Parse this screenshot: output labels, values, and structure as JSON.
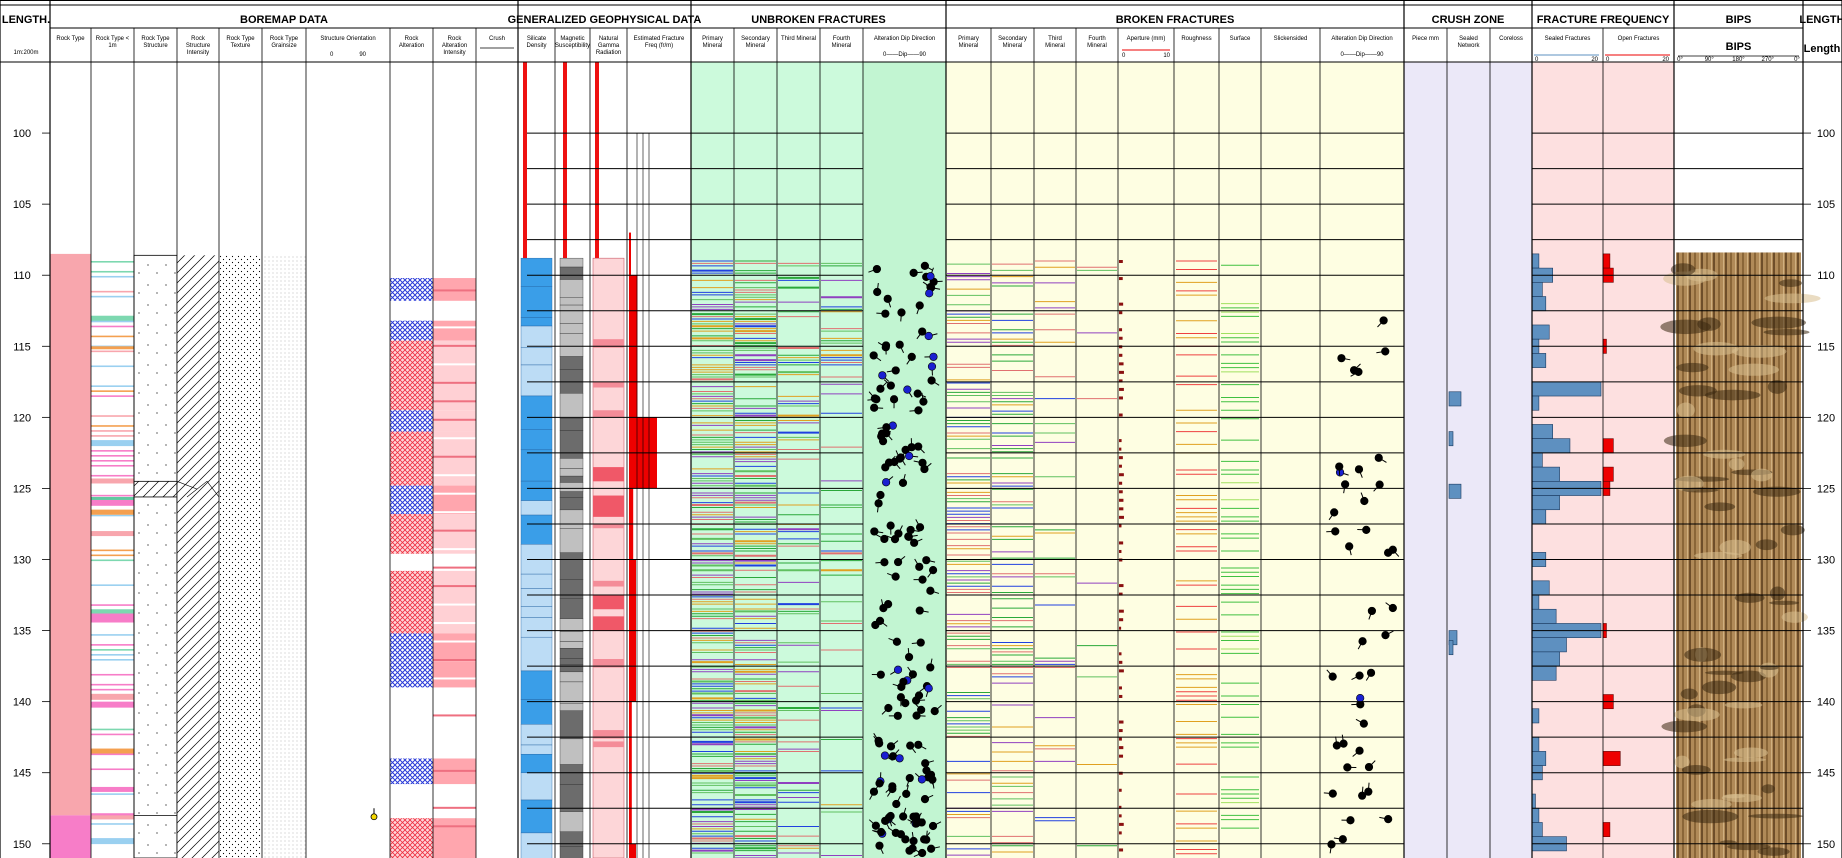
{
  "headers": {
    "length_left": "LENGTH.",
    "length_right": "LENGTH",
    "scale": "1m:200m",
    "length_label": "Length",
    "groups": [
      {
        "id": "boremap",
        "title": "BOREMAP DATA"
      },
      {
        "id": "geo",
        "title": "GENERALIZED GEOPHYSICAL DATA"
      },
      {
        "id": "unbroken",
        "title": "UNBROKEN FRACTURES"
      },
      {
        "id": "broken",
        "title": "BROKEN FRACTURES"
      },
      {
        "id": "crush",
        "title": "CRUSH ZONE"
      },
      {
        "id": "ff",
        "title": "FRACTURE FREQUENCY"
      },
      {
        "id": "bips",
        "title": "BIPS"
      }
    ],
    "columns": [
      {
        "id": "rock-type",
        "label": "Rock Type"
      },
      {
        "id": "rock-type-1m",
        "label": "Rock Type < 1m"
      },
      {
        "id": "rock-type-structure",
        "label": "Rock Type Structure"
      },
      {
        "id": "rock-structure-intensity",
        "label": "Rock Structure Intensity"
      },
      {
        "id": "rock-type-texture",
        "label": "Rock Type Texture"
      },
      {
        "id": "rock-type-grainsize",
        "label": "Rock Type Grainsize"
      },
      {
        "id": "structure-orientation",
        "label": "Structure Orientation"
      },
      {
        "id": "rock-alteration",
        "label": "Rock Alteration"
      },
      {
        "id": "rock-alteration-intensity",
        "label": "Rock Alteration Intensity"
      },
      {
        "id": "crush",
        "label": "Crush"
      },
      {
        "id": "silicate-density",
        "label": "Silicate Density"
      },
      {
        "id": "magnetic-susceptibility",
        "label": "Magnetic Susceptibility"
      },
      {
        "id": "natural-gamma",
        "label": "Natural Gamma Radiation"
      },
      {
        "id": "est-fracture-freq",
        "label": "Estimated Fracture Freq (fr/m)"
      },
      {
        "id": "ub-primary",
        "label": "Primary Mineral"
      },
      {
        "id": "ub-secondary",
        "label": "Secondary Mineral"
      },
      {
        "id": "ub-third",
        "label": "Third Mineral"
      },
      {
        "id": "ub-fourth",
        "label": "Fourth Mineral"
      },
      {
        "id": "ub-alteration",
        "label": "Alteration Dip Direction"
      },
      {
        "id": "br-primary",
        "label": "Primary Mineral"
      },
      {
        "id": "br-secondary",
        "label": "Secondary Mineral"
      },
      {
        "id": "br-third",
        "label": "Third Mineral"
      },
      {
        "id": "br-fourth",
        "label": "Fourth Mineral"
      },
      {
        "id": "br-aperture",
        "label": "Aperture (mm)"
      },
      {
        "id": "br-roughness",
        "label": "Roughness"
      },
      {
        "id": "br-surface",
        "label": "Surface"
      },
      {
        "id": "br-slickensided",
        "label": "Slickensided"
      },
      {
        "id": "br-alteration",
        "label": "Alteration Dip Direction"
      },
      {
        "id": "piece",
        "label": "Piece mm"
      },
      {
        "id": "sealed-network",
        "label": "Sealed Network"
      },
      {
        "id": "coreloss",
        "label": "Coreloss"
      },
      {
        "id": "sealed-fractures",
        "label": "Sealed Fractures"
      },
      {
        "id": "open-fractures",
        "label": "Open Fractures"
      },
      {
        "id": "bips-image",
        "label": "BIPS"
      }
    ],
    "dip_scale": "0——Dip——90",
    "orientation_scale": [
      "0",
      "90"
    ],
    "aperture_scale": [
      "0",
      "10"
    ],
    "ff_scale": [
      "0",
      "20"
    ],
    "bips_scale": [
      "0°",
      "90°",
      "180°",
      "270°",
      "0°"
    ]
  },
  "depth": {
    "start": 95,
    "end": 151,
    "labels": [
      100,
      105,
      110,
      115,
      120,
      125,
      130,
      135,
      140,
      145,
      150
    ],
    "unit": "m"
  },
  "colors": {
    "rock_type_main": "#f8a6ad",
    "rock_type_bottom": "#f77dc8",
    "unbroken_bg": "#ccfadc",
    "unbroken_dip_bg": "#c2f5d2",
    "broken_bg": "#fefee2",
    "crush_bg": "#ebe8f8",
    "ff_bg": "#fde0e0",
    "ff_bar": "#5e90c0",
    "open_bar": "#ee0000",
    "silicate": "#3a9ee8",
    "silicate_light": "#bcdcf5",
    "magnetic_dark": "#6c6c6c",
    "magnetic_light": "#c0c0c0",
    "gamma_light": "#fdd6d8",
    "gamma_dark": "#f48c98",
    "alteration_blue": "#2a3ad8",
    "alteration_red": "#ee3040"
  },
  "chart_data": {
    "type": "table",
    "depth_axis": {
      "min": 95,
      "max": 151,
      "unit": "m"
    },
    "rock_type": [
      {
        "from": 108.5,
        "to": 148.0,
        "class": "main"
      },
      {
        "from": 148.0,
        "to": 151.0,
        "class": "bottom"
      }
    ],
    "rock_alteration": [
      {
        "from": 110.2,
        "to": 111.8,
        "c": "blue"
      },
      {
        "from": 113.2,
        "to": 114.6,
        "c": "blue"
      },
      {
        "from": 114.6,
        "to": 119.5,
        "c": "red"
      },
      {
        "from": 119.5,
        "to": 121.0,
        "c": "blue"
      },
      {
        "from": 121.0,
        "to": 124.8,
        "c": "red"
      },
      {
        "from": 124.8,
        "to": 126.8,
        "c": "blue"
      },
      {
        "from": 126.8,
        "to": 129.6,
        "c": "red"
      },
      {
        "from": 129.6,
        "to": 130.8,
        "c": "white"
      },
      {
        "from": 130.8,
        "to": 135.2,
        "c": "red"
      },
      {
        "from": 135.2,
        "to": 137.2,
        "c": "blue"
      },
      {
        "from": 137.2,
        "to": 139.0,
        "c": "blue"
      },
      {
        "from": 144.0,
        "to": 145.8,
        "c": "blue"
      },
      {
        "from": 148.2,
        "to": 151.0,
        "c": "red"
      }
    ],
    "sealed_fractures": [
      [
        109,
        2
      ],
      [
        110,
        6
      ],
      [
        111,
        3
      ],
      [
        112,
        4
      ],
      [
        114,
        5
      ],
      [
        115,
        2
      ],
      [
        116,
        4
      ],
      [
        118,
        20
      ],
      [
        119,
        2
      ],
      [
        121,
        6
      ],
      [
        122,
        11
      ],
      [
        123,
        3
      ],
      [
        124,
        8
      ],
      [
        125,
        20
      ],
      [
        126,
        8
      ],
      [
        127,
        4
      ],
      [
        130,
        4
      ],
      [
        132,
        5
      ],
      [
        133,
        2
      ],
      [
        134,
        7
      ],
      [
        135,
        20
      ],
      [
        136,
        10
      ],
      [
        137,
        8
      ],
      [
        138,
        7
      ],
      [
        141,
        2
      ],
      [
        143,
        2
      ],
      [
        144,
        4
      ],
      [
        145,
        3
      ],
      [
        147,
        1
      ],
      [
        148,
        2
      ],
      [
        149,
        3
      ],
      [
        150,
        10
      ]
    ],
    "open_fractures": [
      [
        109,
        2
      ],
      [
        110,
        3
      ],
      [
        115,
        1
      ],
      [
        122,
        3
      ],
      [
        124,
        3
      ],
      [
        125,
        2
      ],
      [
        135,
        1
      ],
      [
        140,
        3
      ],
      [
        144,
        5
      ],
      [
        149,
        2
      ]
    ],
    "crush_pieces": [
      [
        118.7,
        3
      ],
      [
        121.5,
        1
      ],
      [
        125.2,
        3
      ],
      [
        135.5,
        2
      ],
      [
        136.2,
        1
      ]
    ]
  }
}
